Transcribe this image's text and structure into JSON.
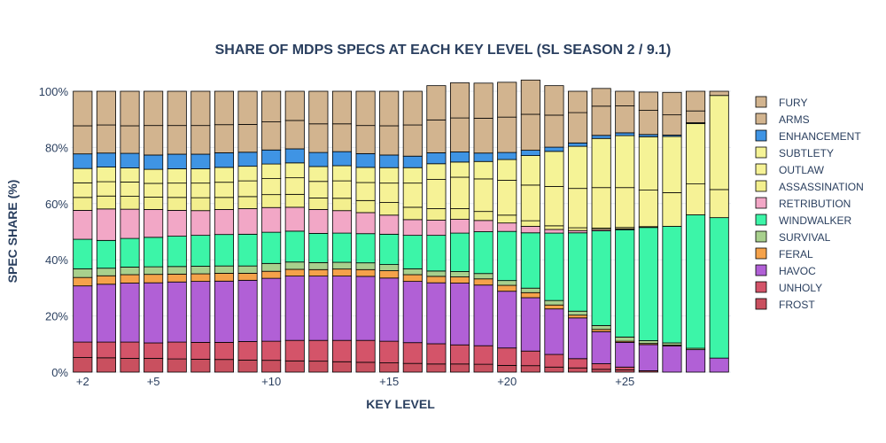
{
  "chart_data": {
    "type": "bar",
    "stacked": true,
    "title": "SHARE OF MDPS SPECS AT EACH KEY LEVEL (SL SEASON 2 / 9.1)",
    "xlabel": "KEY LEVEL",
    "ylabel": "SPEC SHARE (%)",
    "ylim": [
      0,
      100
    ],
    "y_ticks": [
      0,
      20,
      40,
      60,
      80,
      100
    ],
    "y_tick_labels": [
      "0%",
      "20%",
      "40%",
      "60%",
      "80%",
      "100%"
    ],
    "x_ticks": [
      2,
      5,
      10,
      15,
      20,
      25
    ],
    "x_tick_labels": [
      "+2",
      "+5",
      "+10",
      "+15",
      "+20",
      "+25"
    ],
    "categories": [
      2,
      3,
      4,
      5,
      6,
      7,
      8,
      9,
      10,
      11,
      12,
      13,
      14,
      15,
      16,
      17,
      18,
      19,
      20,
      21,
      22,
      23,
      24,
      25,
      26,
      27,
      28,
      29
    ],
    "grid": true,
    "legend_position": "right",
    "series": [
      {
        "name": "FROST",
        "color": "#c9505f",
        "values": [
          5.2,
          5.1,
          4.9,
          4.9,
          4.7,
          4.6,
          4.5,
          4.3,
          4.2,
          4.0,
          3.9,
          3.7,
          3.5,
          3.3,
          3.1,
          2.9,
          2.9,
          2.8,
          2.4,
          2.3,
          1.8,
          1.5,
          1.0,
          0.8,
          0.5,
          0,
          0,
          0
        ]
      },
      {
        "name": "UNHOLY",
        "color": "#d45469",
        "values": [
          5.5,
          5.6,
          5.8,
          5.5,
          6.0,
          6.0,
          6.1,
          6.6,
          6.8,
          7.3,
          7.4,
          7.6,
          7.8,
          7.7,
          7.4,
          7.2,
          6.8,
          6.6,
          6.2,
          5.2,
          4.5,
          3.3,
          2.0,
          1.0,
          0,
          0,
          0,
          0
        ]
      },
      {
        "name": "HAVOC",
        "color": "#b160d6",
        "values": [
          20.0,
          20.6,
          21.0,
          21.4,
          21.4,
          21.7,
          21.8,
          21.8,
          22.4,
          22.9,
          22.9,
          22.9,
          22.8,
          22.5,
          21.8,
          21.7,
          22.0,
          21.6,
          20.2,
          19.0,
          16.2,
          14.5,
          11.4,
          8.8,
          9.3,
          9.3,
          8.0,
          5.0
        ]
      },
      {
        "name": "FERAL",
        "color": "#f5a24a",
        "values": [
          3.0,
          3.0,
          3.0,
          3.0,
          2.8,
          2.7,
          2.8,
          2.5,
          2.5,
          2.4,
          2.3,
          2.5,
          2.4,
          2.6,
          2.4,
          2.3,
          2.2,
          2.2,
          2.1,
          1.8,
          1.4,
          1.0,
          0.8,
          0.4,
          0.4,
          0.3,
          0,
          0
        ]
      },
      {
        "name": "SURVIVAL",
        "color": "#a8d08d",
        "values": [
          3.1,
          2.7,
          2.7,
          2.7,
          2.7,
          2.7,
          2.6,
          2.6,
          2.8,
          2.6,
          2.5,
          2.4,
          2.4,
          2.2,
          2.1,
          1.9,
          1.9,
          1.9,
          1.7,
          1.6,
          1.6,
          1.4,
          1.4,
          1.5,
          1.0,
          0.8,
          0.5,
          0
        ]
      },
      {
        "name": "WINDWALKER",
        "color": "#3cf5a8",
        "values": [
          10.5,
          9.9,
          10.2,
          10.5,
          10.8,
          11.0,
          11.2,
          11.3,
          11.1,
          11.0,
          10.4,
          10.4,
          10.4,
          10.8,
          11.9,
          12.7,
          13.7,
          14.9,
          17.5,
          19.7,
          24.0,
          27.9,
          33.7,
          38.2,
          40.3,
          41.5,
          47.5,
          50.0
        ]
      },
      {
        "name": "RETRIBUTION",
        "color": "#f2a7c6",
        "values": [
          10.3,
          11.2,
          10.4,
          9.9,
          9.2,
          8.8,
          8.9,
          9.1,
          8.8,
          8.5,
          8.5,
          8.0,
          7.5,
          6.8,
          5.6,
          5.4,
          4.9,
          4.0,
          3.0,
          2.3,
          1.3,
          0.8,
          0.5,
          0.3,
          0,
          0,
          0,
          0
        ]
      },
      {
        "name": "ASSASSINATION",
        "color": "#f3ef8e",
        "values": [
          4.6,
          4.6,
          4.6,
          4.4,
          4.6,
          4.6,
          4.3,
          4.3,
          4.6,
          4.6,
          4.1,
          4.4,
          4.3,
          4.5,
          4.4,
          4.1,
          3.8,
          3.2,
          2.8,
          2.0,
          1.3,
          1.0,
          0.5,
          0.5,
          0.3,
          0,
          0,
          0
        ]
      },
      {
        "name": "OUTLAW",
        "color": "#f6f296",
        "values": [
          5.2,
          5.1,
          5.1,
          4.9,
          5.1,
          5.2,
          5.4,
          5.6,
          5.7,
          5.9,
          5.9,
          6.2,
          6.4,
          6.9,
          8.6,
          10.4,
          11.2,
          11.6,
          12.4,
          12.7,
          14.0,
          14.0,
          14.4,
          14.2,
          13.0,
          12.0,
          11.0,
          10.0
        ]
      },
      {
        "name": "SUBTLETY",
        "color": "#f5f396",
        "values": [
          5.1,
          5.2,
          5.0,
          5.0,
          5.1,
          5.1,
          5.3,
          5.2,
          5.2,
          5.3,
          5.3,
          5.4,
          5.4,
          5.5,
          5.5,
          5.6,
          5.4,
          6.2,
          7.4,
          10.5,
          12.5,
          15.0,
          17.5,
          18.5,
          19.0,
          20.0,
          21.5,
          33.5
        ]
      },
      {
        "name": "ENHANCEMENT",
        "color": "#3f94e4",
        "values": [
          5.2,
          5.0,
          5.2,
          5.1,
          5.2,
          5.2,
          5.2,
          5.0,
          5.0,
          5.0,
          5.0,
          5.0,
          4.9,
          4.5,
          4.1,
          3.9,
          3.6,
          3.0,
          2.5,
          1.9,
          1.5,
          1.2,
          1.1,
          1.0,
          0.8,
          0.5,
          0.3,
          0
        ]
      },
      {
        "name": "ARMS",
        "color": "#d2b48f",
        "values": [
          10.0,
          10.0,
          9.8,
          10.5,
          10.2,
          10.2,
          10.0,
          9.9,
          10.0,
          10.1,
          10.2,
          9.9,
          10.0,
          10.4,
          11.1,
          11.7,
          12.1,
          12.4,
          12.6,
          12.8,
          11.4,
          10.8,
          10.4,
          9.6,
          8.6,
          7.2,
          4.2,
          1.5
        ]
      },
      {
        "name": "FURY",
        "color": "#d2b48f",
        "values": [
          12.3,
          12.0,
          12.3,
          12.2,
          12.2,
          12.2,
          11.9,
          11.8,
          10.9,
          10.4,
          11.6,
          11.6,
          12.2,
          12.3,
          12.0,
          12.2,
          12.5,
          12.5,
          12.4,
          12.2,
          10.5,
          7.6,
          6.3,
          5.2,
          6.5,
          8.0,
          7.0,
          0
        ]
      }
    ]
  }
}
